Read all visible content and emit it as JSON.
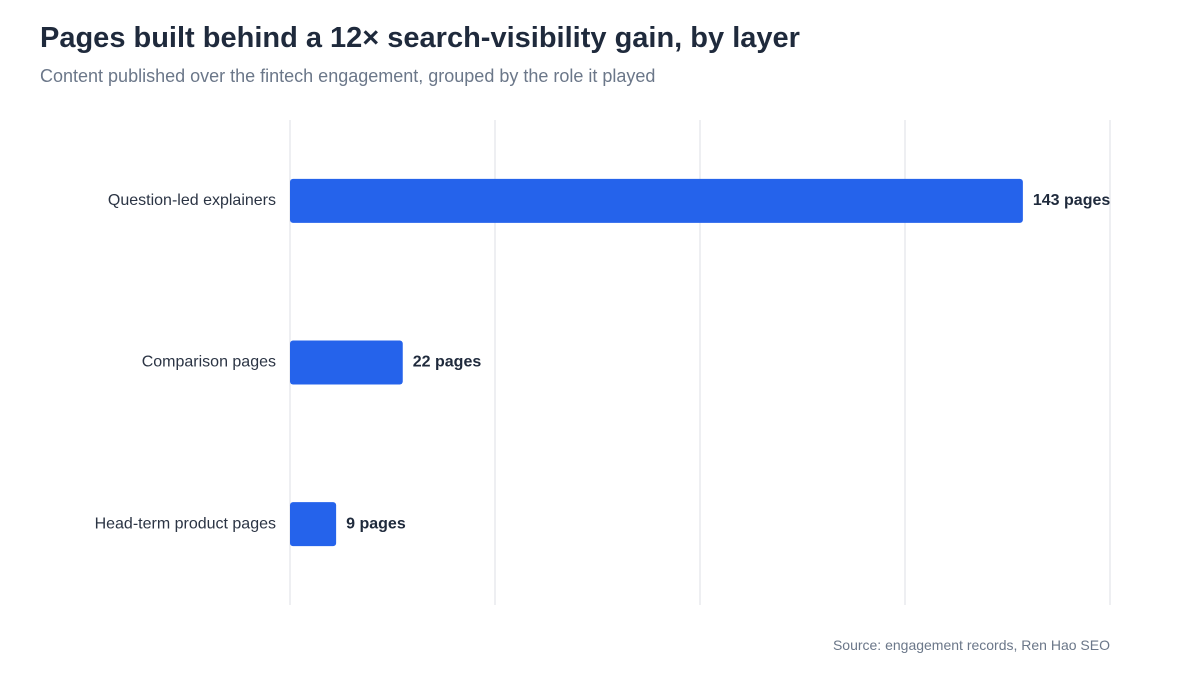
{
  "chart_data": {
    "type": "bar",
    "orientation": "horizontal",
    "title": "Pages built behind a 12× search-visibility gain, by layer",
    "subtitle": "Content published over the fintech engagement, grouped by the role it played",
    "categories": [
      "Question-led explainers",
      "Comparison pages",
      "Head-term product pages"
    ],
    "values": [
      143,
      22,
      9
    ],
    "value_labels": [
      "143 pages",
      "22 pages",
      "9 pages"
    ],
    "xlim": [
      0,
      160
    ],
    "grid": true,
    "bar_color": "#2563eb",
    "source": "Source: engagement records, Ren Hao SEO"
  }
}
